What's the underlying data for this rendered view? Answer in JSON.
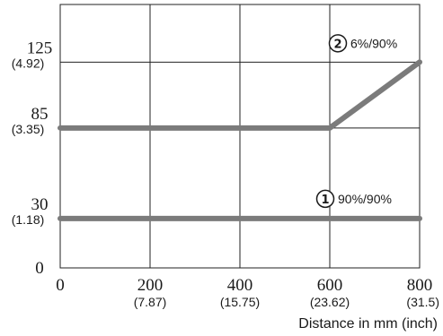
{
  "chart_data": {
    "type": "line",
    "title": "",
    "xlabel": "Distance in mm (inch)",
    "ylabel": "",
    "xlim": [
      0,
      800
    ],
    "ylim": [
      0,
      160
    ],
    "grid": true,
    "line_color": "#7b7b7b",
    "x_ticks": [
      {
        "value": 0,
        "label": "0",
        "sublabel": ""
      },
      {
        "value": 200,
        "label": "200",
        "sublabel": "(7.87)"
      },
      {
        "value": 400,
        "label": "400",
        "sublabel": "(15.75)"
      },
      {
        "value": 600,
        "label": "600",
        "sublabel": "(23.62)"
      },
      {
        "value": 800,
        "label": "800",
        "sublabel": "(31.5)"
      }
    ],
    "y_ticks": [
      {
        "value": 0,
        "label": "0",
        "sublabel": ""
      },
      {
        "value": 30,
        "label": "30",
        "sublabel": "(1.18)"
      },
      {
        "value": 85,
        "label": "85",
        "sublabel": "(3.35)"
      },
      {
        "value": 125,
        "label": "125",
        "sublabel": "(4.92)"
      }
    ],
    "series": [
      {
        "marker": "1",
        "name": "90%/90%",
        "x": [
          0,
          800
        ],
        "y": [
          30,
          30
        ]
      },
      {
        "marker": "2",
        "name": "6%/90%",
        "x": [
          0,
          600,
          800
        ],
        "y": [
          85,
          85,
          125
        ]
      }
    ]
  }
}
